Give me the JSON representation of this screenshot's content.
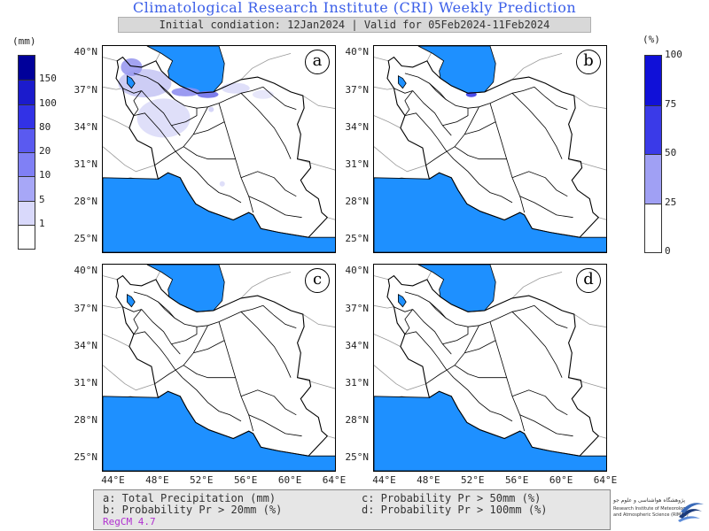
{
  "header": {
    "title": "Climatological Research Institute (CRI) Weekly Prediction",
    "subtitle": "Initial condiation: 12Jan2024 | Valid for 05Feb2024-11Feb2024"
  },
  "legend_left": {
    "unit": "(mm)",
    "ticks": [
      "150",
      "100",
      "80",
      "20",
      "10",
      "5",
      "1"
    ],
    "colors": [
      "#00009a",
      "#1b1bcc",
      "#3232e6",
      "#5a5af0",
      "#8080f5",
      "#a7a7f7",
      "#d9d9fb",
      "#ffffff"
    ]
  },
  "legend_right": {
    "unit": "(%)",
    "ticks": [
      "100",
      "75",
      "50",
      "25",
      "0"
    ],
    "colors": [
      "#1010d8",
      "#3a3ae8",
      "#a0a0f4",
      "#ffffff"
    ]
  },
  "panels": [
    {
      "label": "a"
    },
    {
      "label": "b"
    },
    {
      "label": "c"
    },
    {
      "label": "d"
    }
  ],
  "axes": {
    "lat_labels": [
      "40°N",
      "37°N",
      "34°N",
      "31°N",
      "28°N",
      "25°N"
    ],
    "lon_labels": [
      "44°E",
      "48°E",
      "52°E",
      "56°E",
      "60°E",
      "64°E"
    ]
  },
  "info": {
    "a": "a: Total Precipitation (mm)",
    "b": "b: Probability Pr > 20mm (%)",
    "c": "c: Probability Pr > 50mm (%)",
    "d": "d: Probability Pr > 100mm (%)",
    "model": "RegCM 4.7"
  },
  "logo": {
    "name_fa": "پژوهشگاه هواشناسی و علوم جو",
    "name_en_1": "Research Institute of Meteorology",
    "name_en_2": "and Atmospheric Science (RIMAS)"
  },
  "colors": {
    "water": "#1e90ff",
    "title": "#3a5ee8",
    "model_label": "#b030d0"
  }
}
